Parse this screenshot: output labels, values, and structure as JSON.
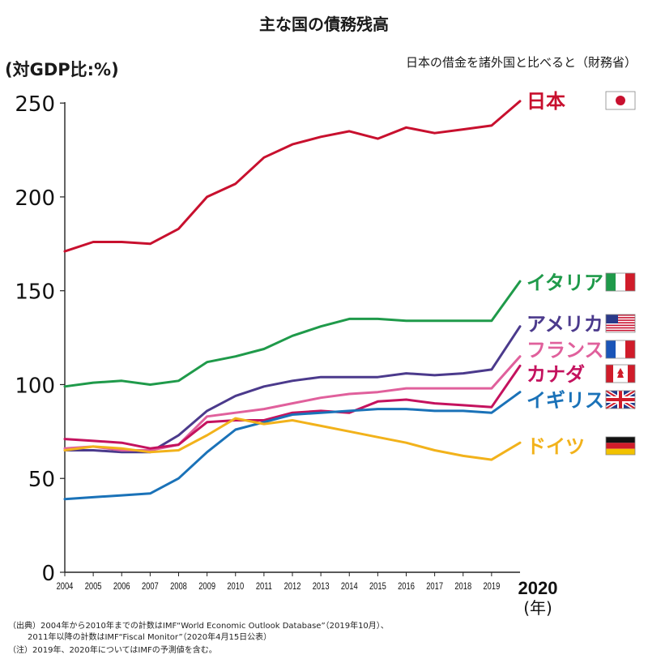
{
  "title": "主な国の債務残高",
  "subtitle": "日本の借金を諸外国と比べると（財務省）",
  "notes": [
    "（出典）2004年から2010年までの計数はIMF“World Economic Outlook Database”（2019年10月）、",
    "2011年以降の計数はIMF“Fiscal Monitor”（2020年4月15日公表）",
    "（注）2019年、2020年についてはIMFの予測値を含む。"
  ],
  "chart_data": {
    "type": "line",
    "ylabel": "(対GDP比:%)",
    "xlabel": "(年)",
    "ylim": [
      0,
      260
    ],
    "yticks": [
      0,
      50,
      100,
      150,
      200,
      250
    ],
    "x": [
      "2004",
      "2005",
      "2006",
      "2007",
      "2008",
      "2009",
      "2010",
      "2011",
      "2012",
      "2013",
      "2014",
      "2015",
      "2016",
      "2017",
      "2018",
      "2019",
      "2020"
    ],
    "grid": false,
    "legend": "right",
    "series": [
      {
        "name": "日本",
        "color": "#c8102e",
        "flag": "japan-flag-icon",
        "values": [
          171,
          176,
          176,
          175,
          183,
          200,
          207,
          221,
          228,
          232,
          235,
          231,
          237,
          234,
          236,
          238,
          251
        ]
      },
      {
        "name": "イタリア",
        "color": "#1f9a4a",
        "flag": "italy-flag-icon",
        "values": [
          99,
          101,
          102,
          100,
          102,
          112,
          115,
          119,
          126,
          131,
          135,
          135,
          134,
          134,
          134,
          134,
          155
        ]
      },
      {
        "name": "アメリカ",
        "color": "#4b3a8c",
        "flag": "usa-flag-icon",
        "values": [
          65,
          65,
          64,
          64,
          73,
          86,
          94,
          99,
          102,
          104,
          104,
          104,
          106,
          105,
          106,
          108,
          131
        ]
      },
      {
        "name": "フランス",
        "color": "#e0609c",
        "flag": "france-flag-icon",
        "values": [
          66,
          67,
          65,
          65,
          68,
          83,
          85,
          87,
          90,
          93,
          95,
          96,
          98,
          98,
          98,
          98,
          115
        ]
      },
      {
        "name": "カナダ",
        "color": "#c4125e",
        "flag": "canada-flag-icon",
        "values": [
          71,
          70,
          69,
          66,
          68,
          80,
          81,
          81,
          85,
          86,
          85,
          91,
          92,
          90,
          89,
          88,
          110
        ]
      },
      {
        "name": "イギリス",
        "color": "#1a72b8",
        "flag": "uk-flag-icon",
        "values": [
          39,
          40,
          41,
          42,
          50,
          64,
          76,
          80,
          84,
          85,
          86,
          87,
          87,
          86,
          86,
          85,
          96
        ]
      },
      {
        "name": "ドイツ",
        "color": "#f2b21b",
        "flag": "germany-flag-icon",
        "values": [
          65,
          67,
          66,
          64,
          65,
          73,
          82,
          79,
          81,
          78,
          75,
          72,
          69,
          65,
          62,
          60,
          69
        ]
      }
    ]
  }
}
